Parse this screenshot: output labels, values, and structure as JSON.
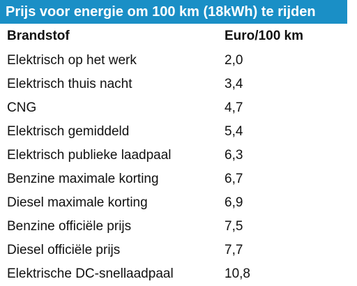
{
  "title": "Prijs voor energie om 100 km (18kWh) te rijden",
  "colors": {
    "title_bg": "#1a8fc6",
    "title_text": "#ffffff",
    "body_text": "#111111"
  },
  "table": {
    "headers": [
      "Brandstof",
      "Euro/100 km"
    ],
    "rows": [
      {
        "brandstof": "Elektrisch op het werk",
        "euro": "2,0"
      },
      {
        "brandstof": "Elektrisch thuis nacht",
        "euro": "3,4"
      },
      {
        "brandstof": "CNG",
        "euro": "4,7"
      },
      {
        "brandstof": "Elektrisch gemiddeld",
        "euro": "5,4"
      },
      {
        "brandstof": "Elektrisch publieke laadpaal",
        "euro": "6,3"
      },
      {
        "brandstof": "Benzine maximale korting",
        "euro": "6,7"
      },
      {
        "brandstof": "Diesel maximale korting",
        "euro": "6,9"
      },
      {
        "brandstof": "Benzine officiële prijs",
        "euro": "7,5"
      },
      {
        "brandstof": "Diesel officiële prijs",
        "euro": "7,7"
      },
      {
        "brandstof": "Elektrische DC-snellaadpaal",
        "euro": "10,8"
      }
    ]
  }
}
